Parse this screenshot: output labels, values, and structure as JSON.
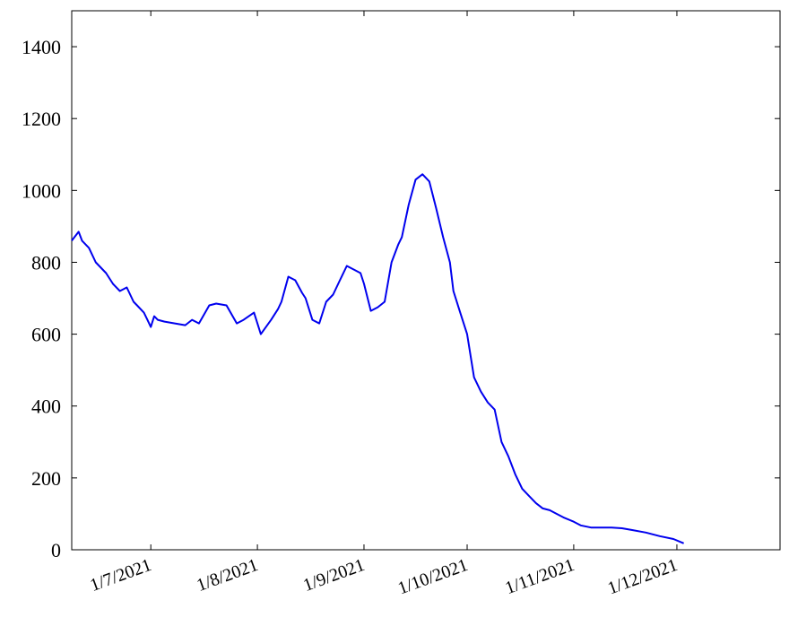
{
  "chart_data": {
    "type": "line",
    "title": "",
    "xlabel": "",
    "ylabel": "",
    "ylim": [
      0,
      1500
    ],
    "xlim": [
      "2021-06-08",
      "2021-12-31"
    ],
    "grid": false,
    "legend": "none",
    "y_ticks": [
      0,
      200,
      400,
      600,
      800,
      1000,
      1200,
      1400
    ],
    "x_ticks": [
      {
        "date": "2021-07-01",
        "label": "1/7/2021"
      },
      {
        "date": "2021-08-01",
        "label": "1/8/2021"
      },
      {
        "date": "2021-09-01",
        "label": "1/9/2021"
      },
      {
        "date": "2021-10-01",
        "label": "1/10/2021"
      },
      {
        "date": "2021-11-01",
        "label": "1/11/2021"
      },
      {
        "date": "2021-12-01",
        "label": "1/12/2021"
      }
    ],
    "series": [
      {
        "color": "#0000ee",
        "x": [
          "2021-06-08",
          "2021-06-10",
          "2021-06-11",
          "2021-06-13",
          "2021-06-15",
          "2021-06-18",
          "2021-06-20",
          "2021-06-22",
          "2021-06-24",
          "2021-06-26",
          "2021-06-27",
          "2021-06-29",
          "2021-06-30",
          "2021-07-01",
          "2021-07-02",
          "2021-07-03",
          "2021-07-05",
          "2021-07-08",
          "2021-07-11",
          "2021-07-13",
          "2021-07-15",
          "2021-07-18",
          "2021-07-20",
          "2021-07-23",
          "2021-07-26",
          "2021-07-28",
          "2021-07-31",
          "2021-08-02",
          "2021-08-05",
          "2021-08-07",
          "2021-08-08",
          "2021-08-10",
          "2021-08-12",
          "2021-08-14",
          "2021-08-15",
          "2021-08-17",
          "2021-08-19",
          "2021-08-21",
          "2021-08-23",
          "2021-08-25",
          "2021-08-27",
          "2021-08-29",
          "2021-08-31",
          "2021-09-01",
          "2021-09-03",
          "2021-09-05",
          "2021-09-07",
          "2021-09-09",
          "2021-09-11",
          "2021-09-12",
          "2021-09-14",
          "2021-09-16",
          "2021-09-18",
          "2021-09-20",
          "2021-09-22",
          "2021-09-24",
          "2021-09-26",
          "2021-09-27",
          "2021-09-29",
          "2021-10-01",
          "2021-10-03",
          "2021-10-05",
          "2021-10-07",
          "2021-10-09",
          "2021-10-11",
          "2021-10-13",
          "2021-10-15",
          "2021-10-17",
          "2021-10-19",
          "2021-10-21",
          "2021-10-23",
          "2021-10-25",
          "2021-10-27",
          "2021-10-29",
          "2021-11-01",
          "2021-11-03",
          "2021-11-06",
          "2021-11-09",
          "2021-11-12",
          "2021-11-15",
          "2021-11-18",
          "2021-11-22",
          "2021-11-26",
          "2021-11-30",
          "2021-12-03",
          "2021-12-06",
          "2021-12-08",
          "2021-12-10"
        ],
        "y": [
          860,
          885,
          860,
          840,
          800,
          770,
          740,
          720,
          730,
          690,
          680,
          660,
          640,
          620,
          650,
          640,
          635,
          630,
          625,
          640,
          630,
          680,
          685,
          680,
          630,
          640,
          660,
          600,
          640,
          670,
          690,
          760,
          750,
          715,
          700,
          640,
          630,
          690,
          710,
          750,
          790,
          780,
          770,
          740,
          665,
          675,
          690,
          800,
          850,
          870,
          960,
          1030,
          1045,
          1025,
          950,
          870,
          800,
          720,
          660,
          600,
          480,
          440,
          410,
          390,
          300,
          260,
          210,
          170,
          150,
          130,
          115,
          110,
          100,
          90,
          78,
          68,
          62,
          62,
          62,
          60,
          55,
          48,
          38,
          30,
          18,
          null,
          null,
          null
        ]
      }
    ]
  }
}
